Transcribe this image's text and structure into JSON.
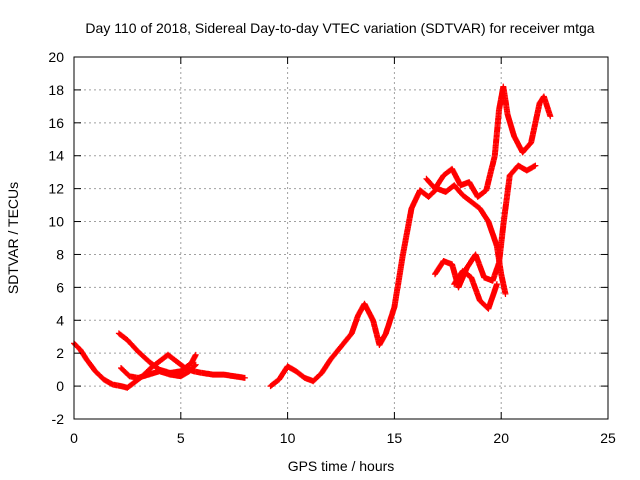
{
  "chart_data": {
    "type": "scatter",
    "title": "Day 110 of 2018, Sidereal Day-to-day VTEC variation (SDTVAR) for receiver mtga",
    "xlabel": "GPS time / hours",
    "ylabel": "SDTVAR / TECUs",
    "xlim": [
      0,
      25
    ],
    "ylim": [
      -2,
      20
    ],
    "x_ticks": [
      0,
      5,
      10,
      15,
      20,
      25
    ],
    "y_ticks": [
      -2,
      0,
      2,
      4,
      6,
      8,
      10,
      12,
      14,
      16,
      18,
      20
    ],
    "grid": true,
    "marker": "plus",
    "color": "#ff0000",
    "series": [
      {
        "x": [
          0,
          0.3,
          0.6,
          1.0,
          1.4,
          1.8,
          2.2,
          2.5,
          2.8,
          3.2,
          3.6,
          4.0,
          4.4,
          4.8,
          5.2,
          5.6,
          6.0,
          6.5,
          7.0,
          7.5,
          8.0
        ],
        "y": [
          2.6,
          2.2,
          1.6,
          0.9,
          0.4,
          0.1,
          0.0,
          -0.1,
          0.2,
          0.6,
          1.1,
          1.5,
          1.9,
          1.5,
          1.1,
          0.9,
          0.8,
          0.7,
          0.7,
          0.6,
          0.5
        ]
      },
      {
        "x": [
          2.1,
          2.5,
          3.0,
          3.5,
          4.0,
          4.5,
          5.0,
          5.5,
          5.7
        ],
        "y": [
          3.2,
          2.8,
          2.1,
          1.5,
          1.0,
          0.8,
          0.9,
          1.4,
          1.9
        ]
      },
      {
        "x": [
          2.2,
          2.6,
          3.0,
          3.5,
          4.0,
          4.5,
          5.0,
          5.4,
          5.7
        ],
        "y": [
          1.1,
          0.6,
          0.5,
          0.7,
          0.9,
          0.7,
          0.6,
          0.9,
          1.3
        ]
      },
      {
        "x": [
          9.2,
          9.6,
          10.0,
          10.4,
          10.8,
          11.2,
          11.6,
          12.0,
          12.5,
          13.0,
          13.3,
          13.6,
          14.0,
          14.3,
          14.6,
          15.0,
          15.4,
          15.8,
          16.2,
          16.6,
          17.0,
          17.4,
          17.8,
          18.2,
          18.6,
          19.0,
          19.4,
          19.8,
          20.0,
          20.2
        ],
        "y": [
          0.0,
          0.4,
          1.2,
          0.9,
          0.5,
          0.3,
          0.8,
          1.6,
          2.4,
          3.2,
          4.3,
          5.0,
          4.0,
          2.5,
          3.2,
          4.8,
          8.0,
          10.8,
          11.9,
          11.5,
          12.0,
          11.8,
          12.2,
          11.6,
          11.2,
          10.8,
          10.0,
          8.5,
          6.8,
          5.6
        ]
      },
      {
        "x": [
          16.5,
          16.9,
          17.3,
          17.7,
          18.1,
          18.5,
          18.9,
          19.3,
          19.7,
          19.9,
          20.1,
          20.3,
          20.6,
          21.0,
          21.4,
          21.8,
          22.0,
          22.3
        ],
        "y": [
          12.6,
          12.0,
          12.8,
          13.2,
          12.2,
          12.4,
          11.5,
          11.9,
          14.0,
          16.8,
          18.2,
          16.5,
          15.2,
          14.2,
          14.8,
          17.2,
          17.6,
          16.4
        ]
      },
      {
        "x": [
          16.9,
          17.3,
          17.7,
          18.0,
          18.4,
          18.8,
          19.2,
          19.6,
          19.9,
          20.1,
          20.4,
          20.8,
          21.2,
          21.6
        ],
        "y": [
          6.8,
          7.6,
          7.4,
          6.0,
          7.2,
          8.0,
          6.6,
          6.4,
          7.5,
          9.8,
          12.8,
          13.4,
          13.1,
          13.4
        ]
      },
      {
        "x": [
          17.8,
          18.2,
          18.6,
          19.0,
          19.4,
          19.8
        ],
        "y": [
          6.2,
          7.0,
          6.6,
          5.2,
          4.7,
          6.2
        ]
      }
    ]
  }
}
